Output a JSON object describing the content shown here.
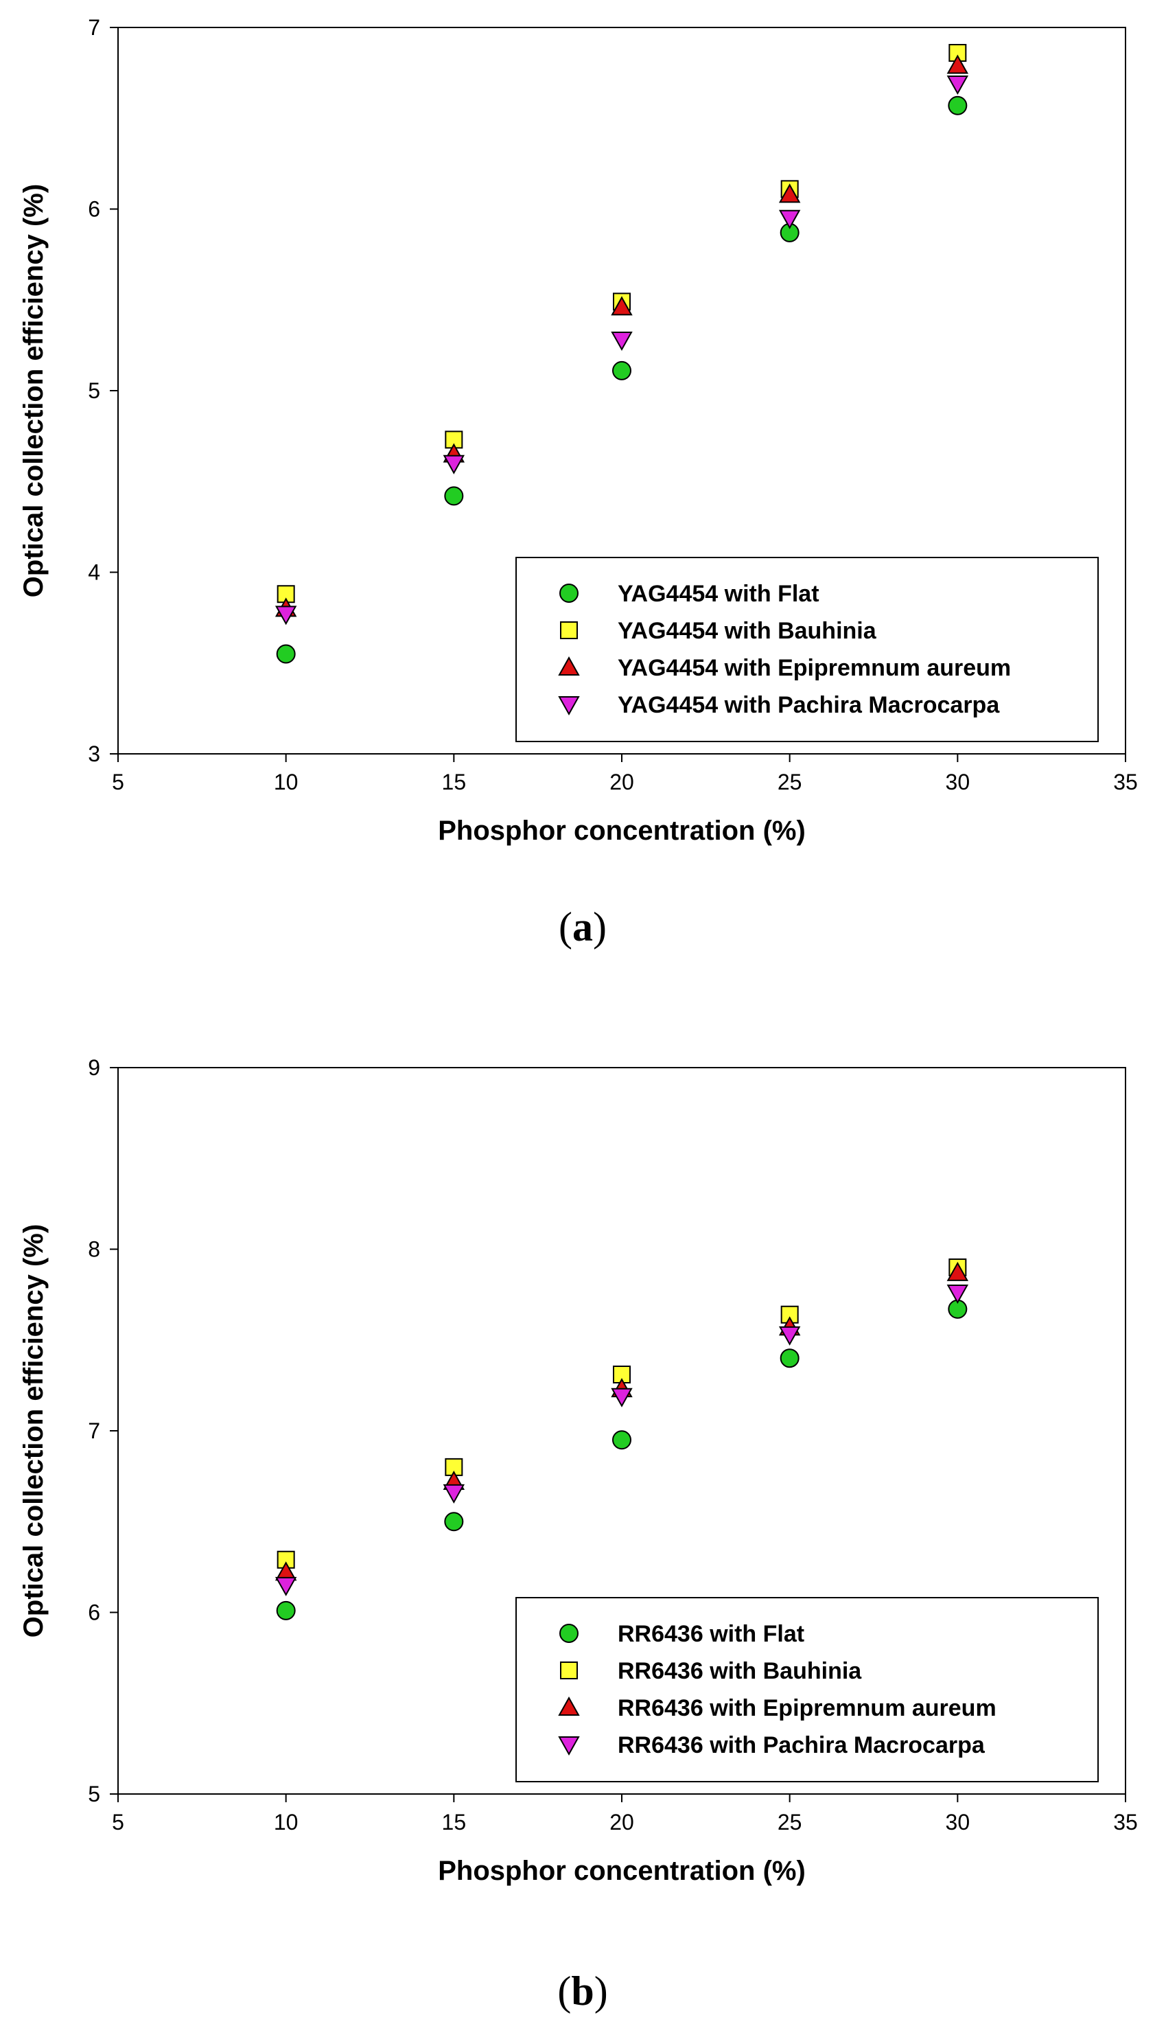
{
  "colors": {
    "flat": "#22cc22",
    "bauhinia": "#ffff33",
    "epipremnum": "#dd1111",
    "pachira": "#dd22dd",
    "stroke": "#000000"
  },
  "chart_data": [
    {
      "type": "scatter",
      "panel": "a",
      "xlabel": "Phosphor concentration (%)",
      "ylabel": "Optical collection efficiency (%)",
      "xlim": [
        5,
        35
      ],
      "ylim": [
        3,
        7
      ],
      "xticks": [
        "5",
        "10",
        "15",
        "20",
        "25",
        "30",
        "35"
      ],
      "yticks": [
        "3",
        "4",
        "5",
        "6",
        "7"
      ],
      "legend_position": "bottom-right",
      "x": [
        10,
        15,
        20,
        25,
        30
      ],
      "series": [
        {
          "name": "YAG4454 with Flat",
          "marker": "circle",
          "color_key": "flat",
          "values": [
            3.55,
            4.42,
            5.11,
            5.87,
            6.57
          ]
        },
        {
          "name": "YAG4454 with Bauhinia",
          "marker": "square",
          "color_key": "bauhinia",
          "values": [
            3.88,
            4.73,
            5.49,
            6.11,
            6.86
          ]
        },
        {
          "name": "YAG4454 with Epipremnum aureum",
          "marker": "triangle-up",
          "color_key": "epipremnum",
          "values": [
            3.8,
            4.65,
            5.46,
            6.08,
            6.79
          ]
        },
        {
          "name": "YAG4454 with Pachira Macrocarpa",
          "marker": "triangle-down",
          "color_key": "pachira",
          "values": [
            3.77,
            4.6,
            5.28,
            5.95,
            6.69
          ]
        }
      ]
    },
    {
      "type": "scatter",
      "panel": "b",
      "xlabel": "Phosphor concentration (%)",
      "ylabel": "Optical collection efficiency (%)",
      "xlim": [
        5,
        35
      ],
      "ylim": [
        5,
        9
      ],
      "xticks": [
        "5",
        "10",
        "15",
        "20",
        "25",
        "30",
        "35"
      ],
      "yticks": [
        "5",
        "6",
        "7",
        "8",
        "9"
      ],
      "legend_position": "bottom-right",
      "x": [
        10,
        15,
        20,
        25,
        30
      ],
      "series": [
        {
          "name": "RR6436 with Flat",
          "marker": "circle",
          "color_key": "flat",
          "values": [
            6.01,
            6.5,
            6.95,
            7.4,
            7.67
          ]
        },
        {
          "name": "RR6436 with Bauhinia",
          "marker": "square",
          "color_key": "bauhinia",
          "values": [
            6.29,
            6.8,
            7.31,
            7.64,
            7.9
          ]
        },
        {
          "name": "RR6436 with Epipremnum aureum",
          "marker": "triangle-up",
          "color_key": "epipremnum",
          "values": [
            6.22,
            6.72,
            7.23,
            7.57,
            7.87
          ]
        },
        {
          "name": "RR6436 with Pachira Macrocarpa",
          "marker": "triangle-down",
          "color_key": "pachira",
          "values": [
            6.15,
            6.66,
            7.19,
            7.53,
            7.76
          ]
        }
      ]
    }
  ],
  "captions": {
    "a": {
      "open": "(",
      "letter": "a",
      "close": ")"
    },
    "b": {
      "open": "(",
      "letter": "b",
      "close": ")"
    }
  }
}
